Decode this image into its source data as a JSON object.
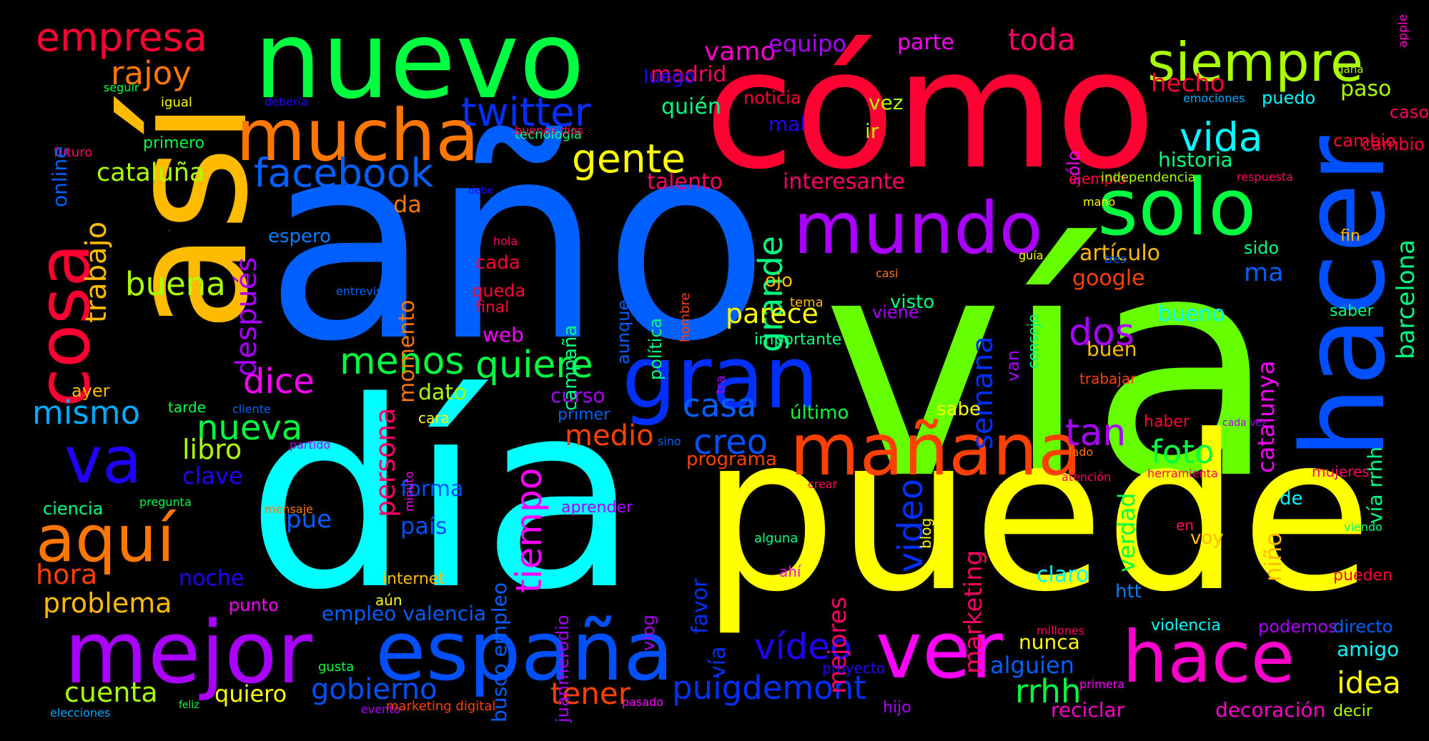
{
  "background": "#000000",
  "words": [
    {
      "text": "vía",
      "color": "#66ff00"
    },
    {
      "text": "año",
      "color": "#0060ff"
    },
    {
      "text": "día",
      "color": "#00ffff"
    },
    {
      "text": "puede",
      "color": "#ffff00"
    },
    {
      "text": "cómo",
      "color": "#ff0033"
    },
    {
      "text": "nuevo",
      "color": "#00ff40"
    },
    {
      "text": "así",
      "color": "#ffbb00"
    },
    {
      "text": "hacer",
      "color": "#0050ff"
    },
    {
      "text": "mejor",
      "color": "#aa00ff"
    },
    {
      "text": "españa",
      "color": "#0050ff"
    },
    {
      "text": "ver",
      "color": "#ff00ff"
    },
    {
      "text": "hace",
      "color": "#ff00cc"
    },
    {
      "text": "mañana",
      "color": "#ff4000"
    },
    {
      "text": "gran",
      "color": "#0030ff"
    },
    {
      "text": "mundo",
      "color": "#aa00ff"
    },
    {
      "text": "solo",
      "color": "#00ff40"
    },
    {
      "text": "mucha",
      "color": "#ff7700"
    },
    {
      "text": "cosa",
      "color": "#ff0033"
    },
    {
      "text": "va",
      "color": "#2200ff"
    },
    {
      "text": "aquí",
      "color": "#ff7700"
    },
    {
      "text": "siempre",
      "color": "#aaff00"
    },
    {
      "text": "twitter",
      "color": "#0030ff"
    },
    {
      "text": "facebook",
      "color": "#0060ff"
    },
    {
      "text": "gente",
      "color": "#ffff00"
    },
    {
      "text": "vida",
      "color": "#00ffff"
    },
    {
      "text": "empresa",
      "color": "#ff0033"
    },
    {
      "text": "rajoy",
      "color": "#ff7700"
    },
    {
      "text": "cataluña",
      "color": "#aaff00"
    },
    {
      "text": "trabajo",
      "color": "#ffbb00"
    },
    {
      "text": "después",
      "color": "#aa00ff"
    },
    {
      "text": "buena",
      "color": "#aaff00"
    },
    {
      "text": "menos",
      "color": "#00ff40"
    },
    {
      "text": "quiere",
      "color": "#00ff40"
    },
    {
      "text": "dice",
      "color": "#ff00ff"
    },
    {
      "text": "casa",
      "color": "#0060ff"
    },
    {
      "text": "nueva",
      "color": "#00ff40"
    },
    {
      "text": "libro",
      "color": "#aaff00"
    },
    {
      "text": "mismo",
      "color": "#00aaff"
    },
    {
      "text": "creo",
      "color": "#0050ff"
    },
    {
      "text": "tan",
      "color": "#aa00ff"
    },
    {
      "text": "dos",
      "color": "#aa00ff"
    },
    {
      "text": "foto",
      "color": "#00ff40"
    },
    {
      "text": "tiempo",
      "color": "#ff00ff"
    },
    {
      "text": "persona",
      "color": "#ff0066"
    },
    {
      "text": "medio",
      "color": "#ff4000"
    },
    {
      "text": "grande",
      "color": "#00ff80"
    },
    {
      "text": "semana",
      "color": "#0030ff"
    },
    {
      "text": "parece",
      "color": "#ffff00"
    },
    {
      "text": "vídeo",
      "color": "#2200ff"
    },
    {
      "text": "video",
      "color": "#0030ff"
    },
    {
      "text": "puigdemont",
      "color": "#0030ff"
    },
    {
      "text": "rrhh",
      "color": "#00ff40"
    },
    {
      "text": "idea",
      "color": "#ffff00"
    },
    {
      "text": "tener",
      "color": "#ff4000"
    },
    {
      "text": "gobierno",
      "color": "#0050ff"
    },
    {
      "text": "cuenta",
      "color": "#aaff00"
    },
    {
      "text": "quiero",
      "color": "#ffff00"
    },
    {
      "text": "problema",
      "color": "#ffbb00"
    },
    {
      "text": "hora",
      "color": "#ff4000"
    },
    {
      "text": "noche",
      "color": "#2200ff"
    },
    {
      "text": "clave",
      "color": "#2200ff"
    },
    {
      "text": "pue",
      "color": "#0060ff"
    },
    {
      "text": "país",
      "color": "#0050ff"
    },
    {
      "text": "forma",
      "color": "#0050ff"
    },
    {
      "text": "dato",
      "color": "#aaff00"
    },
    {
      "text": "curso",
      "color": "#aa00ff"
    },
    {
      "text": "programa",
      "color": "#ff4000"
    },
    {
      "text": "momento",
      "color": "#ff7700"
    },
    {
      "text": "da",
      "color": "#ff7700"
    },
    {
      "text": "espero",
      "color": "#0080ff"
    },
    {
      "text": "campaña",
      "color": "#00ff80"
    },
    {
      "text": "política",
      "color": "#00ff80"
    },
    {
      "text": "aunque",
      "color": "#0060ff"
    },
    {
      "text": "hombre",
      "color": "#ff4000"
    },
    {
      "text": "cada",
      "color": "#ff0033"
    },
    {
      "text": "queda",
      "color": "#ff0033"
    },
    {
      "text": "final",
      "color": "#ff0033"
    },
    {
      "text": "web",
      "color": "#ff00ff"
    },
    {
      "text": "talento",
      "color": "#ff0066"
    },
    {
      "text": "interesante",
      "color": "#ff0066"
    },
    {
      "text": "vamo",
      "color": "#ff00cc"
    },
    {
      "text": "madrid",
      "color": "#ff0066"
    },
    {
      "text": "equipo",
      "color": "#aa00ff"
    },
    {
      "text": "parte",
      "color": "#ff00ff"
    },
    {
      "text": "toda",
      "color": "#ff0066"
    },
    {
      "text": "luego",
      "color": "#2200ff"
    },
    {
      "text": "quién",
      "color": "#00ff80"
    },
    {
      "text": "noticia",
      "color": "#ff0033"
    },
    {
      "text": "mal",
      "color": "#2200ff"
    },
    {
      "text": "vez",
      "color": "#aaff00"
    },
    {
      "text": "ir",
      "color": "#aaff00"
    },
    {
      "text": "hecho",
      "color": "#ff0033"
    },
    {
      "text": "historia",
      "color": "#00ff80"
    },
    {
      "text": "sólo",
      "color": "#ff00ff"
    },
    {
      "text": "ejemplo",
      "color": "#ff0033"
    },
    {
      "text": "independencia",
      "color": "#aaff00"
    },
    {
      "text": "respuesta",
      "color": "#ff0066"
    },
    {
      "text": "paso",
      "color": "#aaff00"
    },
    {
      "text": "caso",
      "color": "#ff0066"
    },
    {
      "text": "cambio",
      "color": "#ff0033"
    },
    {
      "text": "puedo",
      "color": "#00ffff"
    },
    {
      "text": "emociones",
      "color": "#00aaff"
    },
    {
      "text": "gana",
      "color": "#aaff00"
    },
    {
      "text": "apple",
      "color": "#ff00cc"
    },
    {
      "text": "barcelona",
      "color": "#00ff80"
    },
    {
      "text": "fin",
      "color": "#ffbb00"
    },
    {
      "text": "sido",
      "color": "#00ff80"
    },
    {
      "text": "saber",
      "color": "#00ff80"
    },
    {
      "text": "catalunya",
      "color": "#ff00ff"
    },
    {
      "text": "vía rrhh",
      "color": "#00ff80"
    },
    {
      "text": "cambio",
      "color": "#ff0033"
    },
    {
      "text": "artículo",
      "color": "#ffbb00"
    },
    {
      "text": "google",
      "color": "#ff4000"
    },
    {
      "text": "ma",
      "color": "#0060ff"
    },
    {
      "text": "bueno",
      "color": "#00ffff"
    },
    {
      "text": "buen",
      "color": "#ffbb00"
    },
    {
      "text": "trabajar",
      "color": "#ff4000"
    },
    {
      "text": "haber",
      "color": "#ff0033"
    },
    {
      "text": "cada vez",
      "color": "#aa00ff"
    },
    {
      "text": "lado",
      "color": "#ff7700"
    },
    {
      "text": "atención",
      "color": "#ff0066"
    },
    {
      "text": "herramienta",
      "color": "#ff0066"
    },
    {
      "text": "mujeres",
      "color": "#ff0066"
    },
    {
      "text": "de",
      "color": "#00ffff"
    },
    {
      "text": "niño",
      "color": "#ffbb00"
    },
    {
      "text": "verdad",
      "color": "#00ff40"
    },
    {
      "text": "claro",
      "color": "#00ffff"
    },
    {
      "text": "htt",
      "color": "#0080ff"
    },
    {
      "text": "en",
      "color": "#ff0066"
    },
    {
      "text": "voy",
      "color": "#ffbb00"
    },
    {
      "text": "viendo",
      "color": "#00ff80"
    },
    {
      "text": "pueden",
      "color": "#ff0033"
    },
    {
      "text": "violencia",
      "color": "#00ffff"
    },
    {
      "text": "podemos",
      "color": "#aa00ff"
    },
    {
      "text": "directo",
      "color": "#0060ff"
    },
    {
      "text": "amigo",
      "color": "#00ffff"
    },
    {
      "text": "millones",
      "color": "#ff0066"
    },
    {
      "text": "primera",
      "color": "#ff00ff"
    },
    {
      "text": "decir",
      "color": "#aaff00"
    },
    {
      "text": "reciclar",
      "color": "#ff00cc"
    },
    {
      "text": "decoración",
      "color": "#ff00cc"
    },
    {
      "text": "alguien",
      "color": "#0060ff"
    },
    {
      "text": "nunca",
      "color": "#ffff00"
    },
    {
      "text": "hijo",
      "color": "#aa00ff"
    },
    {
      "text": "marketing",
      "color": "#ff0066"
    },
    {
      "text": "mejores",
      "color": "#ff0066"
    },
    {
      "text": "favor",
      "color": "#0030ff"
    },
    {
      "text": "vía",
      "color": "#0030ff"
    },
    {
      "text": "blog",
      "color": "#ffff00"
    },
    {
      "text": "proyecto",
      "color": "#2200ff"
    },
    {
      "text": "ahí",
      "color": "#ff00ff"
    },
    {
      "text": "alguna",
      "color": "#00ff80"
    },
    {
      "text": "crear",
      "color": "#ff0066"
    },
    {
      "text": "evento",
      "color": "#aa00ff"
    },
    {
      "text": "marketing digital",
      "color": "#ff4000"
    },
    {
      "text": "pasado",
      "color": "#ff00ff"
    },
    {
      "text": "juanmerodio",
      "color": "#aa00ff"
    },
    {
      "text": "vlog",
      "color": "#aa00ff"
    },
    {
      "text": "busco empleo",
      "color": "#0060ff"
    },
    {
      "text": "aprender",
      "color": "#aa00ff"
    },
    {
      "text": "primer",
      "color": "#0060ff"
    },
    {
      "text": "sino",
      "color": "#0060ff"
    },
    {
      "text": "internet",
      "color": "#ffbb00"
    },
    {
      "text": "aún",
      "color": "#ffff00"
    },
    {
      "text": "empleo valencia",
      "color": "#0060ff"
    },
    {
      "text": "punto",
      "color": "#ff00ff"
    },
    {
      "text": "cara",
      "color": "#ffff00"
    },
    {
      "text": "minuto",
      "color": "#ff00ff"
    },
    {
      "text": "mensaje",
      "color": "#ff7700"
    },
    {
      "text": "partido",
      "color": "#aa00ff"
    },
    {
      "text": "cliente",
      "color": "#0060ff"
    },
    {
      "text": "tarde",
      "color": "#00ff40"
    },
    {
      "text": "ayer",
      "color": "#ffbb00"
    },
    {
      "text": "ciencia",
      "color": "#00ff80"
    },
    {
      "text": "pregunta",
      "color": "#00ff40"
    },
    {
      "text": "gusta",
      "color": "#00ff40"
    },
    {
      "text": "elecciones",
      "color": "#00aaff"
    },
    {
      "text": "feliz",
      "color": "#00ff40"
    },
    {
      "text": "tra",
      "color": "#aa00ff"
    },
    {
      "text": "último",
      "color": "#00ff40"
    },
    {
      "text": "sabe",
      "color": "#ffff00"
    },
    {
      "text": "van",
      "color": "#aa00ff"
    },
    {
      "text": "consejo",
      "color": "#00ff80"
    },
    {
      "text": "ojo",
      "color": "#ffbb00"
    },
    {
      "text": "tema",
      "color": "#ffbb00"
    },
    {
      "text": "importante",
      "color": "#00ff80"
    },
    {
      "text": "viene",
      "color": "#aa00ff"
    },
    {
      "text": "visto",
      "color": "#00ff80"
    },
    {
      "text": "casi",
      "color": "#ff7700"
    },
    {
      "text": "guía",
      "color": "#ffff00"
    },
    {
      "text": "tres",
      "color": "#0060ff"
    },
    {
      "text": "mano",
      "color": "#ffff00"
    },
    {
      "text": "debe",
      "color": "#2200ff"
    },
    {
      "text": "hola",
      "color": "#ff0066"
    },
    {
      "text": "entrevista",
      "color": "#0060ff"
    },
    {
      "text": "tecnología",
      "color": "#00ff80"
    },
    {
      "text": "buenos días",
      "color": "#ff0066"
    },
    {
      "text": "debería",
      "color": "#2200ff"
    },
    {
      "text": "igual",
      "color": "#ffff00"
    },
    {
      "text": "seguir",
      "color": "#00ff40"
    },
    {
      "text": "primero",
      "color": "#00ff40"
    },
    {
      "text": "futuro",
      "color": "#ff0066"
    },
    {
      "text": "online",
      "color": "#0060ff"
    },
    {
      "text": ".",
      "color": "#aa00ff"
    }
  ]
}
